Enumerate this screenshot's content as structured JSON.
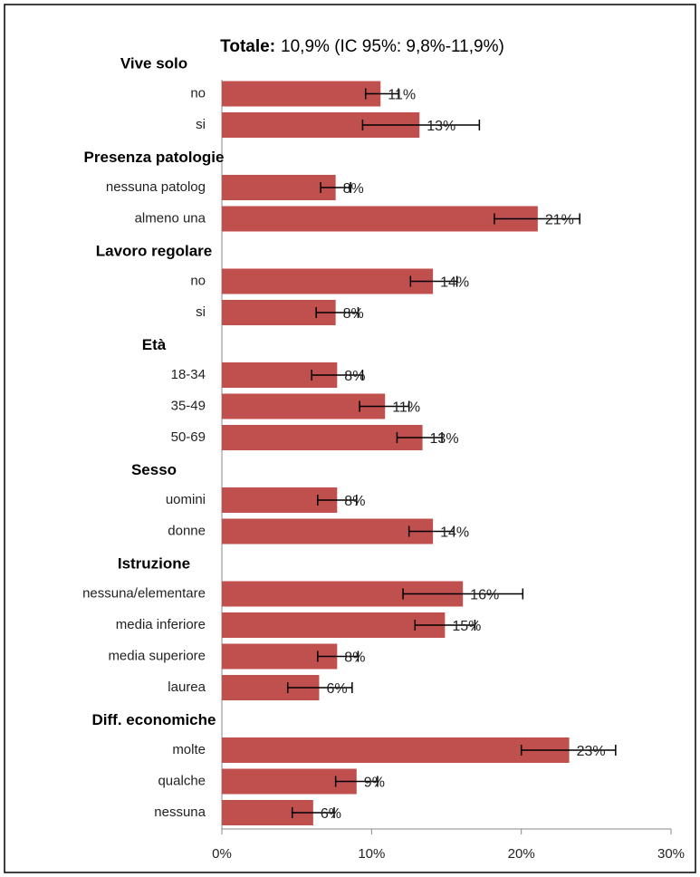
{
  "chart_data": {
    "type": "grouped-hbar-errors",
    "title": "Totale:",
    "title_detail": "10,9% (IC 95%: 9,8%-11,9%)",
    "color": "#c0504d",
    "error_color": "#000000",
    "xlim": [
      0,
      30
    ],
    "xticks": [
      {
        "value": 0,
        "label": "0%"
      },
      {
        "value": 10,
        "label": "10%"
      },
      {
        "value": 20,
        "label": "20%"
      },
      {
        "value": 30,
        "label": "30%"
      }
    ],
    "groups": [
      {
        "name": "Vive solo",
        "categories": [
          "no",
          "si"
        ],
        "values": [
          10.6,
          13.2
        ],
        "value_labels": [
          "11%",
          "13%"
        ],
        "ci_low": [
          9.6,
          9.4
        ],
        "ci_high": [
          11.8,
          17.2
        ]
      },
      {
        "name": "Presenza patologie",
        "categories": [
          "nessuna patolog",
          "almeno una"
        ],
        "values": [
          7.6,
          21.1
        ],
        "value_labels": [
          "8%",
          "21%"
        ],
        "ci_low": [
          6.6,
          18.2
        ],
        "ci_high": [
          8.6,
          23.9
        ]
      },
      {
        "name": "Lavoro regolare",
        "categories": [
          "no",
          "si"
        ],
        "values": [
          14.1,
          7.6
        ],
        "value_labels": [
          "14%",
          "8%"
        ],
        "ci_low": [
          12.6,
          6.3
        ],
        "ci_high": [
          15.7,
          9.1
        ]
      },
      {
        "name": "Età",
        "categories": [
          "18-34",
          "35-49",
          "50-69"
        ],
        "values": [
          7.7,
          10.9,
          13.4
        ],
        "value_labels": [
          "8%",
          "11%",
          "13%"
        ],
        "ci_low": [
          6.0,
          9.2,
          11.7
        ],
        "ci_high": [
          9.4,
          12.5,
          14.7
        ]
      },
      {
        "name": "Sesso",
        "categories": [
          "uomini",
          "donne"
        ],
        "values": [
          7.7,
          14.1
        ],
        "value_labels": [
          "8%",
          "14%"
        ],
        "ci_low": [
          6.4,
          12.5
        ],
        "ci_high": [
          9.0,
          15.5
        ]
      },
      {
        "name": "Istruzione",
        "categories": [
          "nessuna/elementare",
          "media inferiore",
          "media superiore",
          "laurea"
        ],
        "values": [
          16.1,
          14.9,
          7.7,
          6.5
        ],
        "value_labels": [
          "16%",
          "15%",
          "8%",
          "6%"
        ],
        "ci_low": [
          12.1,
          12.9,
          6.4,
          4.4
        ],
        "ci_high": [
          20.1,
          16.9,
          9.1,
          8.7
        ]
      },
      {
        "name": "Diff. economiche",
        "categories": [
          "molte",
          "qualche",
          "nessuna"
        ],
        "values": [
          23.2,
          9.0,
          6.1
        ],
        "value_labels": [
          "23%",
          "9%",
          "6%"
        ],
        "ci_low": [
          20.0,
          7.6,
          4.7
        ],
        "ci_high": [
          26.3,
          10.4,
          7.5
        ]
      }
    ]
  }
}
